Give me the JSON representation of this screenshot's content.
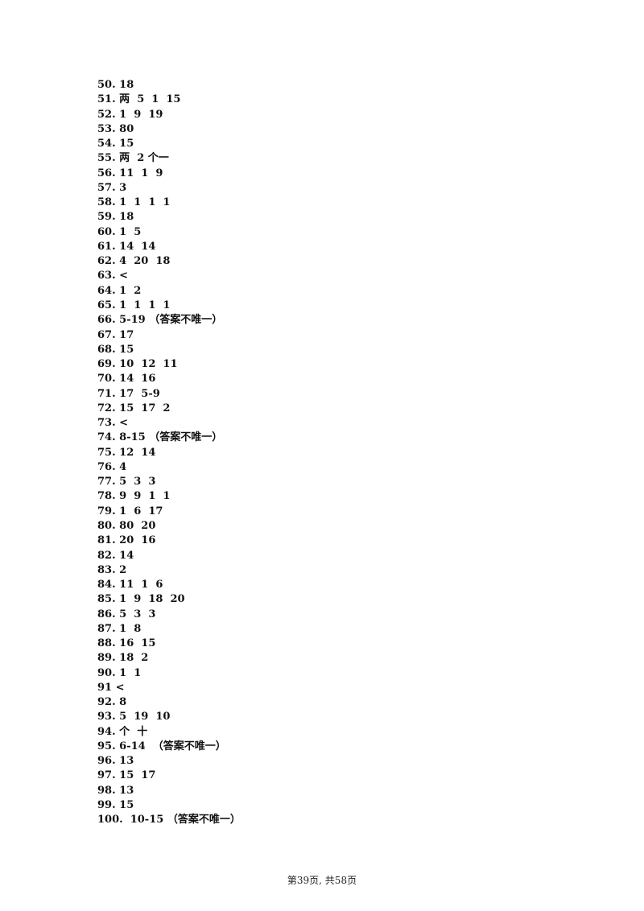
{
  "answers": [
    "50. 18",
    "51. 两  5  1  15",
    "52. 1  9  19",
    "53. 80",
    "54. 15",
    "55. 两  2 个一",
    "56. 11  1  9",
    "57. 3",
    "58. 1  1  1  1",
    "59. 18",
    "60. 1  5",
    "61. 14  14",
    "62. 4  20  18",
    "63. <",
    "64. 1  2",
    "65. 1  1  1  1",
    "66. 5-19 （答案不唯一）",
    "67. 17",
    "68. 15",
    "69. 10  12  11",
    "70. 14  16",
    "71. 17  5-9",
    "72. 15  17  2",
    "73. <",
    "74. 8-15 （答案不唯一）",
    "75. 12  14",
    "76. 4",
    "77. 5  3  3",
    "78. 9  9  1  1",
    "79. 1  6  17",
    "80. 80  20",
    "81. 20  16",
    "82. 14",
    "83. 2",
    "84. 11  1  6",
    "85. 1  9  18  20",
    "86. 5  3  3",
    "87. 1  8",
    "88. 16  15",
    "89. 18  2",
    "90. 1  1",
    "91 <",
    "92. 8",
    "93. 5  19  10",
    "94. 个  十",
    "95. 6-14  （答案不唯一）",
    "96. 13",
    "97. 15  17",
    "98. 13",
    "99. 15",
    "100.  10-15 （答案不唯一）"
  ],
  "footer": {
    "page_label": "第39页, 共58页"
  }
}
